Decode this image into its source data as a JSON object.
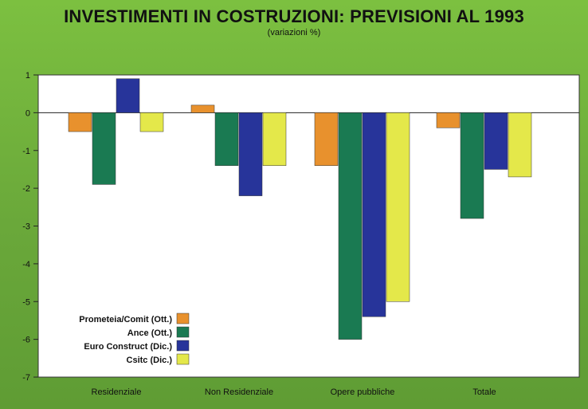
{
  "chart_data": {
    "type": "bar",
    "title": "INVESTIMENTI IN COSTRUZIONI: PREVISIONI AL 1993",
    "subtitle": "(variazioni %)",
    "xlabel": "",
    "ylabel": "",
    "ylim": [
      -7,
      1
    ],
    "yticks": [
      1,
      0,
      -1,
      -2,
      -3,
      -4,
      -5,
      -6,
      -7
    ],
    "grid": false,
    "legend_position": "bottom-left",
    "categories": [
      "Residenziale",
      "Non Residenziale",
      "Opere pubbliche",
      "Totale"
    ],
    "series": [
      {
        "name": "Prometeia/Comit (Ott.)",
        "color": "#e8912d",
        "values": [
          -0.5,
          0.2,
          -1.4,
          -0.4
        ]
      },
      {
        "name": "Ance (Ott.)",
        "color": "#1a7a52",
        "values": [
          -1.9,
          -1.4,
          -6.0,
          -2.8
        ]
      },
      {
        "name": "Euro Construct (Dic.)",
        "color": "#27349a",
        "values": [
          0.9,
          -2.2,
          -5.4,
          -1.5
        ]
      },
      {
        "name": "Csitc (Dic.)",
        "color": "#e4e84a",
        "values": [
          -0.5,
          -1.4,
          -5.0,
          -1.7
        ]
      }
    ]
  }
}
